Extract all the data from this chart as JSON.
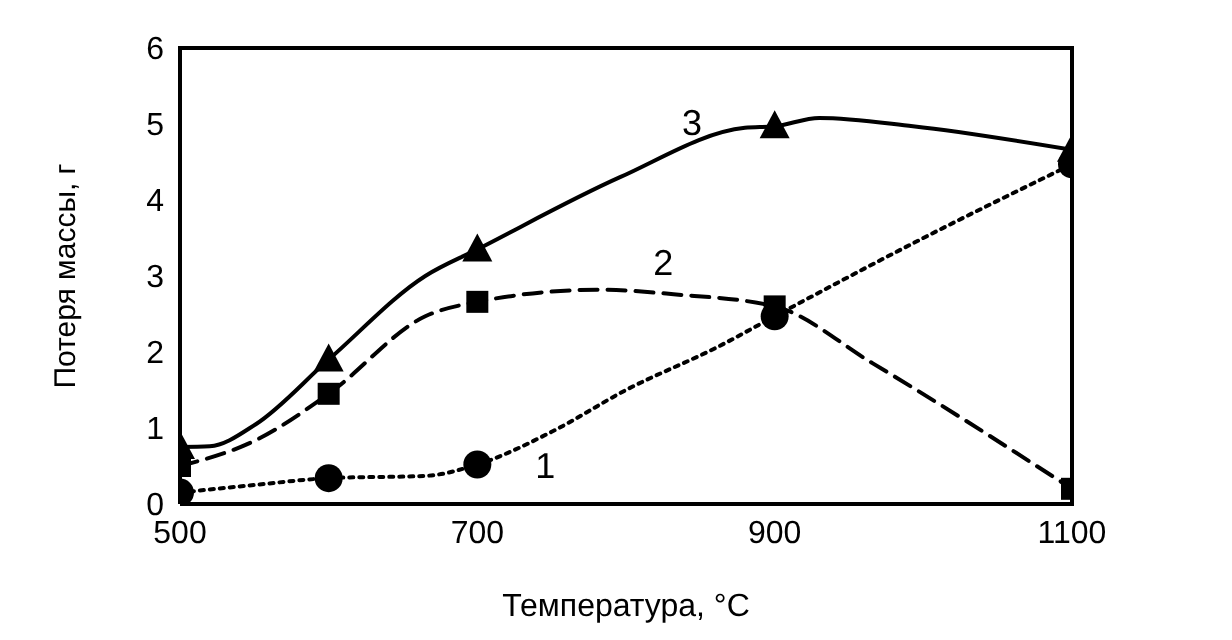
{
  "chart_data": {
    "type": "line",
    "xlabel": "Температура, °C",
    "ylabel": "Потеря массы, г",
    "xlim": [
      500,
      1100
    ],
    "xticks": [
      500,
      700,
      900,
      1100
    ],
    "ylim": [
      0,
      6
    ],
    "yticks": [
      0,
      1,
      2,
      3,
      4,
      5,
      6
    ],
    "grid": false,
    "series": [
      {
        "name": "1",
        "color": "#000000",
        "line_style": "dotted",
        "marker": "none",
        "x": [
          500,
          550,
          600,
          665,
          700,
          750,
          800,
          863,
          900,
          1000,
          1100
        ],
        "values": [
          0.15,
          0.25,
          0.34,
          0.37,
          0.52,
          0.95,
          1.5,
          2.08,
          2.47,
          3.5,
          4.47
        ]
      },
      {
        "type": "scatter",
        "color": "#000000",
        "marker": "circle",
        "x": [
          500,
          600,
          700,
          900,
          1100
        ],
        "values": [
          0.15,
          0.34,
          0.52,
          2.47,
          4.47
        ]
      },
      {
        "name": "2",
        "color": "#000000",
        "line_style": "dashed",
        "marker": "none",
        "x": [
          500,
          551,
          600,
          665,
          700,
          782,
          832,
          900,
          966,
          1100
        ],
        "values": [
          0.5,
          0.84,
          1.45,
          2.47,
          2.66,
          2.82,
          2.76,
          2.6,
          1.85,
          0.2
        ]
      },
      {
        "type": "scatter",
        "color": "#000000",
        "marker": "square",
        "x": [
          500,
          600,
          700,
          900,
          1100
        ],
        "values": [
          0.5,
          1.45,
          2.66,
          2.6,
          0.2
        ]
      },
      {
        "name": "3",
        "color": "#000000",
        "line_style": "solid",
        "marker": "none",
        "x": [
          500,
          520,
          551,
          600,
          665,
          700,
          796,
          880,
          900,
          930,
          993,
          1100
        ],
        "values": [
          0.75,
          0.76,
          1.05,
          1.9,
          3.0,
          3.35,
          4.3,
          4.95,
          4.97,
          5.08,
          4.97,
          4.66
        ]
      },
      {
        "type": "scatter",
        "color": "#000000",
        "marker": "triangle",
        "x": [
          500,
          600,
          700,
          900,
          1100
        ],
        "values": [
          0.75,
          1.9,
          3.35,
          4.97,
          4.66
        ]
      }
    ]
  }
}
